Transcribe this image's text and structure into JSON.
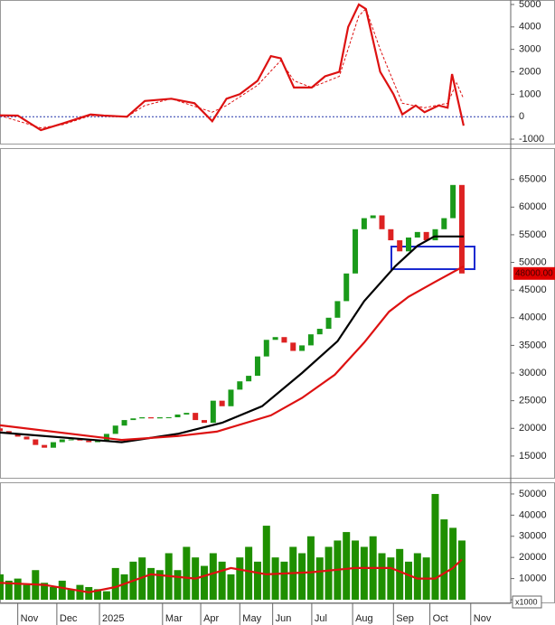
{
  "chart_data": [
    {
      "type": "line",
      "reference_line": {
        "value": 0,
        "color": "#2233aa"
      },
      "series": [
        {
          "color": "#dd1111",
          "style": "solid",
          "x": [
            0,
            2,
            4.6,
            7.1,
            10.2,
            11.7,
            14.3,
            16.3,
            19.3,
            21.9,
            23.9,
            25.5,
            27,
            29,
            30.5,
            31.6,
            33.1,
            35.1,
            36.6,
            38.2,
            39.2,
            40.4,
            41.2,
            42.8,
            44.3,
            45.3,
            46.8,
            47.8,
            49.4,
            50.4,
            50.9,
            51.4,
            52.2
          ],
          "values": [
            60,
            50,
            -600,
            -300,
            100,
            50,
            0,
            700,
            800,
            600,
            -200,
            800,
            1000,
            1600,
            2700,
            2600,
            1300,
            1300,
            1800,
            2000,
            4000,
            5000,
            4800,
            2000,
            1000,
            100,
            500,
            200,
            500,
            400,
            1900,
            1000,
            -400
          ]
        },
        {
          "color": "#dd1111",
          "style": "dashed",
          "x": [
            0,
            4.6,
            7.1,
            10.2,
            14.3,
            16.3,
            19.3,
            23.9,
            25.5,
            29,
            31.6,
            33.1,
            35.1,
            38.2,
            40.4,
            41.2,
            42.8,
            45.3,
            47.8,
            50.4,
            51.4,
            52.2
          ],
          "values": [
            50,
            -500,
            -350,
            50,
            0,
            500,
            800,
            200,
            500,
            1400,
            2500,
            1600,
            1300,
            1800,
            4500,
            4800,
            3000,
            600,
            400,
            600,
            1500,
            800
          ]
        }
      ],
      "ylim": [
        -1240,
        5200
      ],
      "yticks": [
        5000,
        4000,
        3000,
        2000,
        1000,
        0,
        -1000
      ]
    },
    {
      "type": "candlestick",
      "open": [
        20000,
        19500,
        19000,
        18500,
        18000,
        17000,
        16500,
        17500,
        18000,
        18000,
        17800,
        17500,
        17800,
        19000,
        20500,
        21500,
        21800,
        22000,
        21800,
        22000,
        22000,
        22500,
        22800,
        21500,
        21000,
        25000,
        24000,
        27000,
        28500,
        29500,
        33000,
        36000,
        36500,
        35500,
        34000,
        35000,
        37000,
        38000,
        40000,
        43000,
        48000,
        56000,
        58000,
        58500,
        56000,
        54000,
        52000,
        54500,
        55500,
        54000,
        56000,
        58000,
        64000
      ],
      "close": [
        19500,
        19000,
        18500,
        18000,
        17000,
        16500,
        17500,
        18000,
        18000,
        17800,
        17500,
        17800,
        19000,
        20500,
        21500,
        21800,
        22000,
        21800,
        22000,
        22000,
        22500,
        22800,
        21500,
        21000,
        25000,
        24000,
        27000,
        28500,
        29500,
        33000,
        36000,
        36500,
        35500,
        34000,
        35000,
        37000,
        38000,
        40000,
        43000,
        48000,
        56000,
        58000,
        58500,
        56000,
        54000,
        52000,
        54500,
        55500,
        54000,
        56000,
        58000,
        64000,
        48000
      ],
      "up_color": "#1a9a1a",
      "down_color": "#dd2222",
      "series": [
        {
          "color": "#000000",
          "x": [
            0,
            13.7,
            20,
            25,
            29.5,
            34,
            38,
            41,
            44.5,
            47,
            48.9,
            52.2
          ],
          "values": [
            19250,
            17500,
            19000,
            21000,
            24000,
            30000,
            35750,
            43000,
            49300,
            53000,
            54700,
            54700
          ]
        },
        {
          "color": "#dd1111",
          "x": [
            0,
            13.7,
            20,
            24.4,
            30.5,
            34,
            37.7,
            41,
            43.8,
            46,
            48.9,
            52.2
          ],
          "values": [
            20550,
            17900,
            18600,
            19400,
            22350,
            25500,
            29700,
            35500,
            41100,
            43800,
            46400,
            49300
          ]
        }
      ],
      "last_price": {
        "value": 48000,
        "label": "48000.00"
      },
      "ylim": [
        10900,
        70500
      ],
      "yticks": [
        65000,
        60000,
        55000,
        50000,
        45000,
        40000,
        35000,
        30000,
        25000,
        20000,
        15000
      ]
    },
    {
      "type": "bar",
      "color": "#1f8f00",
      "values": [
        12000,
        9000,
        10000,
        7000,
        14000,
        8000,
        6000,
        9000,
        5000,
        7000,
        6000,
        5000,
        4000,
        15000,
        12000,
        18000,
        20000,
        15000,
        14000,
        22000,
        14000,
        25000,
        20000,
        16000,
        22000,
        18000,
        12000,
        20000,
        25000,
        18000,
        35000,
        20000,
        18000,
        25000,
        22000,
        30000,
        20000,
        25000,
        28000,
        32000,
        28000,
        25000,
        30000,
        22000,
        20000,
        24000,
        18000,
        22000,
        20000,
        50000,
        38000,
        34000,
        28000
      ],
      "series": [
        {
          "color": "#dd1111",
          "x": [
            0,
            5,
            10,
            13,
            17,
            22,
            26,
            30,
            35,
            40,
            44,
            47,
            49,
            51,
            52
          ],
          "values": [
            8000,
            7000,
            3500,
            6000,
            12000,
            10000,
            15000,
            12000,
            13000,
            15000,
            15000,
            10000,
            10000,
            15000,
            19000
          ]
        }
      ],
      "unit_label": "x1000",
      "ylim": [
        -1700,
        55100
      ],
      "yticks": [
        50000,
        40000,
        30000,
        20000,
        10000,
        0
      ],
      "xlim": [
        0,
        57.5
      ],
      "xticks": [
        {
          "value": 2,
          "label": "Nov"
        },
        {
          "value": 6.4,
          "label": "Dec"
        },
        {
          "value": 11.2,
          "label": "2025"
        },
        {
          "value": 18.3,
          "label": "Mar"
        },
        {
          "value": 22.6,
          "label": "Apr"
        },
        {
          "value": 27,
          "label": "May"
        },
        {
          "value": 30.7,
          "label": "Jun"
        },
        {
          "value": 35.1,
          "label": "Jul"
        },
        {
          "value": 39.7,
          "label": "Aug"
        },
        {
          "value": 44.3,
          "label": "Sep"
        },
        {
          "value": 48.4,
          "label": "Oct"
        },
        {
          "value": 53,
          "label": "Nov"
        }
      ]
    }
  ]
}
